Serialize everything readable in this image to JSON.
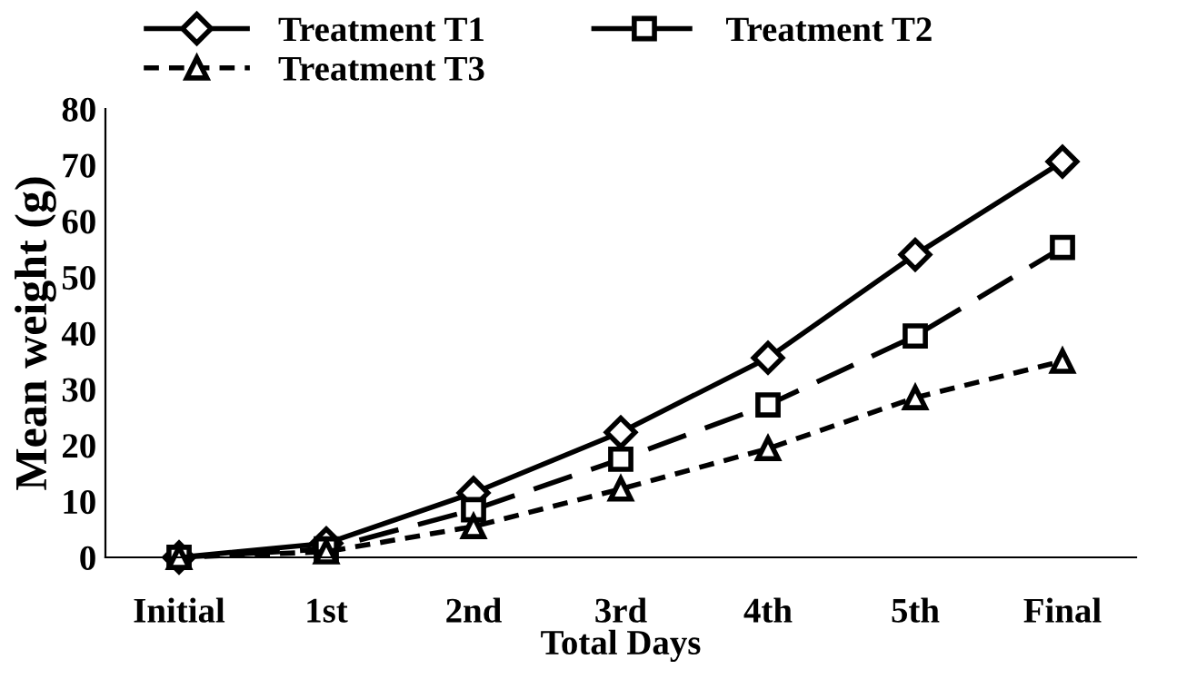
{
  "chart_data": {
    "type": "line",
    "xlabel": "Total Days",
    "ylabel": "Mean weight (g)",
    "categories": [
      "Initial",
      "1st",
      "2nd",
      "3rd",
      "4th",
      "5th",
      "Final"
    ],
    "series": [
      {
        "name": "Treatment T1",
        "color": "#000000",
        "marker": "diamond",
        "line_style": "solid",
        "values": [
          0,
          2.5,
          11.5,
          22.3,
          35.6,
          54,
          70.6
        ]
      },
      {
        "name": "Treatment T2",
        "color": "#000000",
        "marker": "square",
        "line_style": "dashed",
        "values": [
          0,
          1.5,
          8.5,
          17.5,
          27.2,
          39.5,
          55.3
        ]
      },
      {
        "name": "Treatment T3",
        "color": "#000000",
        "marker": "triangle",
        "line_style": "dotted",
        "values": [
          0,
          1,
          5.5,
          12.2,
          19.4,
          28.5,
          35
        ]
      }
    ],
    "ylim": [
      0,
      80
    ],
    "yticks": [
      0,
      10,
      20,
      30,
      40,
      50,
      60,
      70,
      80
    ],
    "grid": false,
    "legend": "top"
  }
}
